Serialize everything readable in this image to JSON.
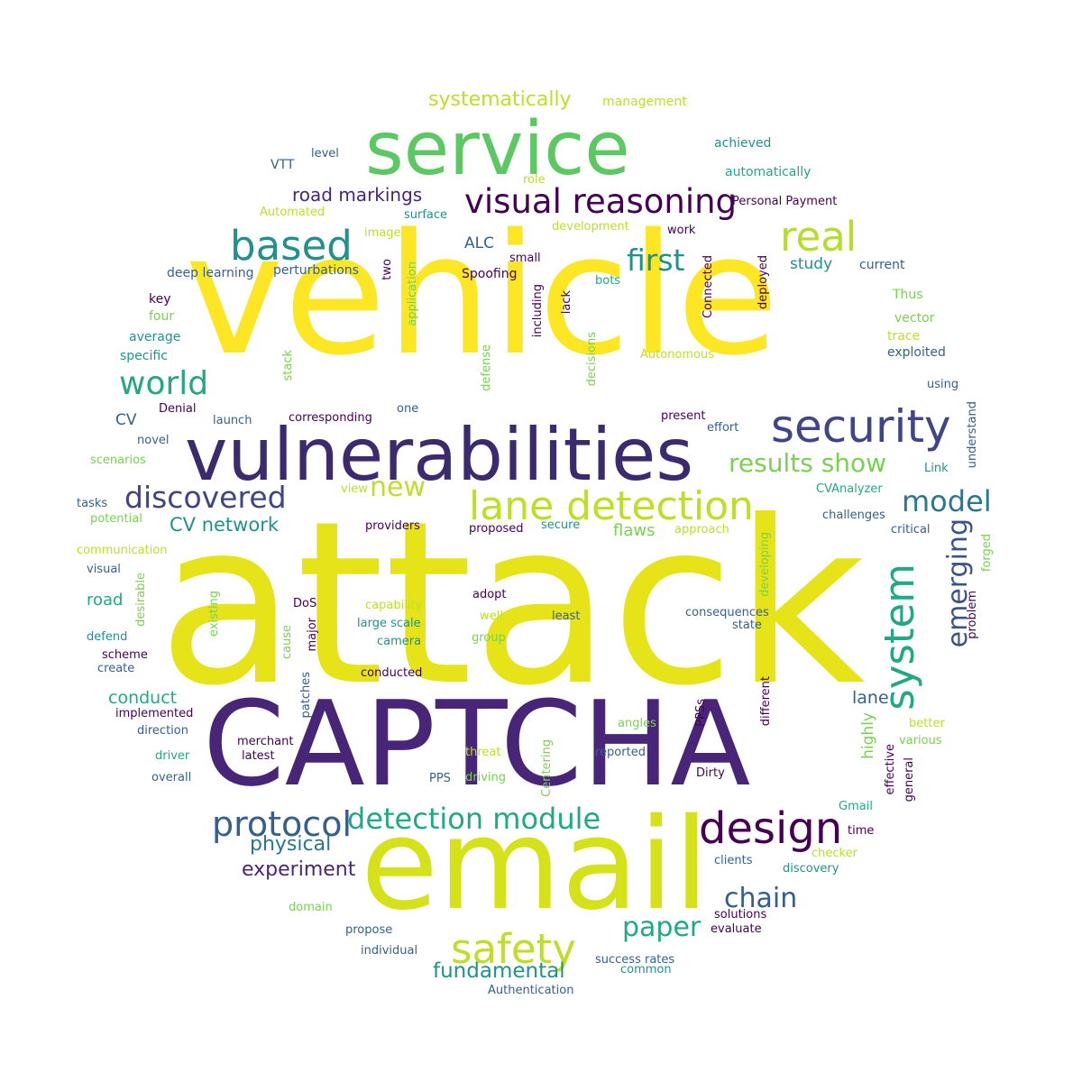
{
  "palette": {
    "c0": "#440154",
    "c1": "#482576",
    "c2": "#414487",
    "c3": "#35608d",
    "c4": "#2a788e",
    "c5": "#21918c",
    "c6": "#22a884",
    "c7": "#43bf71",
    "c8": "#7ad151",
    "c9": "#bddf26",
    "c10": "#fde725"
  },
  "words": [
    {
      "text": "attack",
      "color": "#e6e419"
    },
    {
      "text": "vehicle",
      "color": "#fde725"
    },
    {
      "text": "CAPTCHA",
      "color": "#482576"
    },
    {
      "text": "email",
      "color": "#d5e21a"
    },
    {
      "text": "vulnerabilities",
      "color": "#3b2a6e"
    },
    {
      "text": "service",
      "color": "#5cc863"
    },
    {
      "text": "security",
      "color": "#414487"
    },
    {
      "text": "lane detection",
      "color": "#bddf26"
    },
    {
      "text": "visual reasoning",
      "color": "#440154"
    },
    {
      "text": "based",
      "color": "#21918c"
    },
    {
      "text": "real",
      "color": "#b5de2b"
    },
    {
      "text": "design",
      "color": "#440154"
    },
    {
      "text": "safety",
      "color": "#bddf26"
    },
    {
      "text": "protocol",
      "color": "#35608d"
    },
    {
      "text": "detection module",
      "color": "#22a884"
    },
    {
      "text": "system",
      "color": "#22a884"
    },
    {
      "text": "discovered",
      "color": "#414487"
    },
    {
      "text": "world",
      "color": "#22a884"
    },
    {
      "text": "model",
      "color": "#2a788e"
    },
    {
      "text": "first",
      "color": "#21918c"
    },
    {
      "text": "results show",
      "color": "#7ad151"
    },
    {
      "text": "emerging",
      "color": "#3b528b"
    },
    {
      "text": "new",
      "color": "#bddf26"
    },
    {
      "text": "chain",
      "color": "#35608d"
    },
    {
      "text": "paper",
      "color": "#22a884"
    },
    {
      "text": "fundamental",
      "color": "#21918c"
    },
    {
      "text": "physical",
      "color": "#2a788e"
    },
    {
      "text": "experiment",
      "color": "#482576"
    },
    {
      "text": "CV network",
      "color": "#21918c"
    },
    {
      "text": "road markings",
      "color": "#482576"
    },
    {
      "text": "systematically",
      "color": "#bddf26"
    },
    {
      "text": "management",
      "color": "#bddf26"
    },
    {
      "text": "achieved",
      "color": "#21918c"
    },
    {
      "text": "automatically",
      "color": "#22a884"
    },
    {
      "text": "Personal Payment",
      "color": "#440154"
    },
    {
      "text": "VTT",
      "color": "#35608d"
    },
    {
      "text": "level",
      "color": "#35608d"
    },
    {
      "text": "role",
      "color": "#bddf26"
    },
    {
      "text": "Automated",
      "color": "#bddf26"
    },
    {
      "text": "surface",
      "color": "#21918c"
    },
    {
      "text": "development",
      "color": "#bddf26"
    },
    {
      "text": "work",
      "color": "#440154"
    },
    {
      "text": "image",
      "color": "#bddf26"
    },
    {
      "text": "ALC",
      "color": "#35608d"
    },
    {
      "text": "small",
      "color": "#440154"
    },
    {
      "text": "Spoofing",
      "color": "#440154"
    },
    {
      "text": "study",
      "color": "#21918c"
    },
    {
      "text": "current",
      "color": "#35608d"
    },
    {
      "text": "deep learning",
      "color": "#35608d"
    },
    {
      "text": "perturbations",
      "color": "#35608d"
    },
    {
      "text": "two",
      "color": "#440154"
    },
    {
      "text": "application",
      "color": "#7ad151"
    },
    {
      "text": "including",
      "color": "#440154"
    },
    {
      "text": "lack",
      "color": "#440154"
    },
    {
      "text": "bots",
      "color": "#22a884"
    },
    {
      "text": "Connected",
      "color": "#440154"
    },
    {
      "text": "deployed",
      "color": "#440154"
    },
    {
      "text": "Thus",
      "color": "#7ad151"
    },
    {
      "text": "key",
      "color": "#440154"
    },
    {
      "text": "four",
      "color": "#7ad151"
    },
    {
      "text": "vector",
      "color": "#7ad151"
    },
    {
      "text": "average",
      "color": "#21918c"
    },
    {
      "text": "trace",
      "color": "#bddf26"
    },
    {
      "text": "specific",
      "color": "#21918c"
    },
    {
      "text": "exploited",
      "color": "#35608d"
    },
    {
      "text": "stack",
      "color": "#7ad151"
    },
    {
      "text": "defense",
      "color": "#7ad151"
    },
    {
      "text": "decisions",
      "color": "#7ad151"
    },
    {
      "text": "Autonomous",
      "color": "#bddf26"
    },
    {
      "text": "using",
      "color": "#35608d"
    },
    {
      "text": "Denial",
      "color": "#440154"
    },
    {
      "text": "launch",
      "color": "#35608d"
    },
    {
      "text": "corresponding",
      "color": "#440154"
    },
    {
      "text": "one",
      "color": "#35608d"
    },
    {
      "text": "present",
      "color": "#440154"
    },
    {
      "text": "CV",
      "color": "#35608d"
    },
    {
      "text": "effort",
      "color": "#35608d"
    },
    {
      "text": "understand",
      "color": "#35608d"
    },
    {
      "text": "novel",
      "color": "#35608d"
    },
    {
      "text": "scenarios",
      "color": "#7ad151"
    },
    {
      "text": "Link",
      "color": "#21918c"
    },
    {
      "text": "view",
      "color": "#bddf26"
    },
    {
      "text": "CVAnalyzer",
      "color": "#22a884"
    },
    {
      "text": "tasks",
      "color": "#35608d"
    },
    {
      "text": "potential",
      "color": "#7ad151"
    },
    {
      "text": "challenges",
      "color": "#35608d"
    },
    {
      "text": "providers",
      "color": "#440154"
    },
    {
      "text": "proposed",
      "color": "#440154"
    },
    {
      "text": "secure",
      "color": "#21918c"
    },
    {
      "text": "flaws",
      "color": "#7ad151"
    },
    {
      "text": "approach",
      "color": "#bddf26"
    },
    {
      "text": "critical",
      "color": "#35608d"
    },
    {
      "text": "communication",
      "color": "#bddf26"
    },
    {
      "text": "developing",
      "color": "#7ad151"
    },
    {
      "text": "forged",
      "color": "#7ad151"
    },
    {
      "text": "visual",
      "color": "#35608d"
    },
    {
      "text": "desirable",
      "color": "#7ad151"
    },
    {
      "text": "road",
      "color": "#22a884"
    },
    {
      "text": "existing",
      "color": "#7ad151"
    },
    {
      "text": "DoS",
      "color": "#440154"
    },
    {
      "text": "capability",
      "color": "#bddf26"
    },
    {
      "text": "adopt",
      "color": "#440154"
    },
    {
      "text": "least",
      "color": "#35608d"
    },
    {
      "text": "consequences",
      "color": "#35608d"
    },
    {
      "text": "state",
      "color": "#35608d"
    },
    {
      "text": "problem",
      "color": "#440154"
    },
    {
      "text": "large scale",
      "color": "#21918c"
    },
    {
      "text": "well",
      "color": "#bddf26"
    },
    {
      "text": "defend",
      "color": "#21918c"
    },
    {
      "text": "cause",
      "color": "#7ad151"
    },
    {
      "text": "major",
      "color": "#440154"
    },
    {
      "text": "camera",
      "color": "#21918c"
    },
    {
      "text": "group",
      "color": "#7ad151"
    },
    {
      "text": "scheme",
      "color": "#440154"
    },
    {
      "text": "create",
      "color": "#35608d"
    },
    {
      "text": "conducted",
      "color": "#440154"
    },
    {
      "text": "conduct",
      "color": "#22a884"
    },
    {
      "text": "lane",
      "color": "#35608d"
    },
    {
      "text": "implemented",
      "color": "#440154"
    },
    {
      "text": "patches",
      "color": "#35608d"
    },
    {
      "text": "PPSs",
      "color": "#440154"
    },
    {
      "text": "different",
      "color": "#440154"
    },
    {
      "text": "highly",
      "color": "#7ad151"
    },
    {
      "text": "direction",
      "color": "#35608d"
    },
    {
      "text": "angles",
      "color": "#7ad151"
    },
    {
      "text": "better",
      "color": "#bddf26"
    },
    {
      "text": "merchant",
      "color": "#440154"
    },
    {
      "text": "various",
      "color": "#7ad151"
    },
    {
      "text": "threat",
      "color": "#bddf26"
    },
    {
      "text": "Centering",
      "color": "#7ad151"
    },
    {
      "text": "reported",
      "color": "#35608d"
    },
    {
      "text": "effective",
      "color": "#440154"
    },
    {
      "text": "driver",
      "color": "#22a884"
    },
    {
      "text": "latest",
      "color": "#440154"
    },
    {
      "text": "general",
      "color": "#440154"
    },
    {
      "text": "Dirty",
      "color": "#440154"
    },
    {
      "text": "overall",
      "color": "#35608d"
    },
    {
      "text": "PPS",
      "color": "#35608d"
    },
    {
      "text": "driving",
      "color": "#7ad151"
    },
    {
      "text": "Gmail",
      "color": "#22a884"
    },
    {
      "text": "time",
      "color": "#440154"
    },
    {
      "text": "checker",
      "color": "#bddf26"
    },
    {
      "text": "clients",
      "color": "#35608d"
    },
    {
      "text": "discovery",
      "color": "#21918c"
    },
    {
      "text": "domain",
      "color": "#7ad151"
    },
    {
      "text": "propose",
      "color": "#35608d"
    },
    {
      "text": "solutions",
      "color": "#440154"
    },
    {
      "text": "evaluate",
      "color": "#440154"
    },
    {
      "text": "individual",
      "color": "#35608d"
    },
    {
      "text": "success rates",
      "color": "#35608d"
    },
    {
      "text": "common",
      "color": "#21918c"
    },
    {
      "text": "Authentication",
      "color": "#35608d"
    }
  ]
}
